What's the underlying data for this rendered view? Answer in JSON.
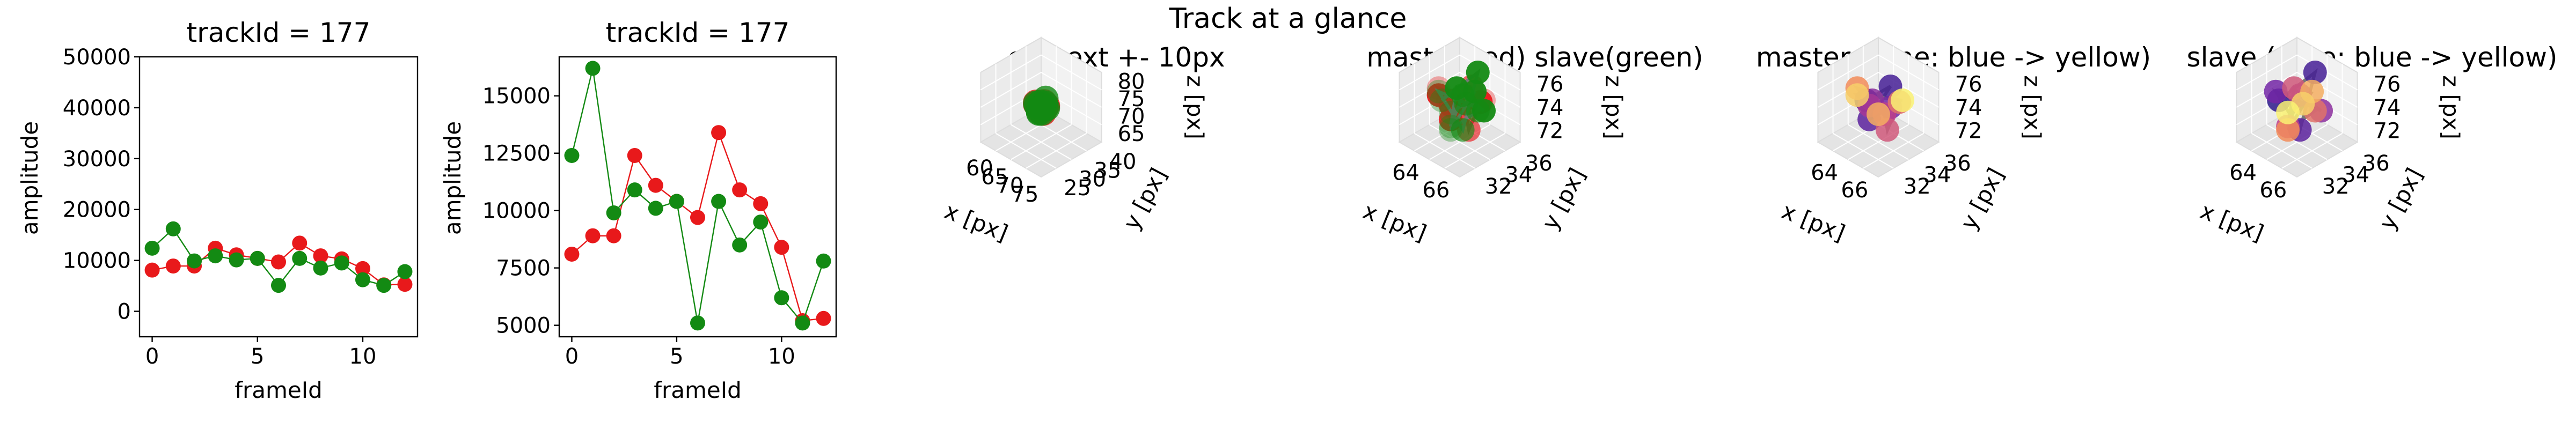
{
  "figure": {
    "suptitle": "Track at a glance"
  },
  "chart_data": [
    {
      "type": "line",
      "title": "trackId = 177",
      "xlabel": "frameId",
      "ylabel": "amplitude",
      "xlim": [
        -0.6,
        12.6
      ],
      "ylim": [
        -5000,
        50000
      ],
      "xticks": [
        0,
        5,
        10
      ],
      "yticks": [
        0,
        10000,
        20000,
        30000,
        40000,
        50000
      ],
      "x": [
        0,
        1,
        2,
        3,
        4,
        5,
        6,
        7,
        8,
        9,
        10,
        11,
        12
      ],
      "series": [
        {
          "color": "#e8191b",
          "values": [
            8100,
            8900,
            8900,
            12400,
            11100,
            10400,
            9700,
            13400,
            10900,
            10300,
            8400,
            5200,
            5300
          ]
        },
        {
          "color": "#138a13",
          "values": [
            12400,
            16200,
            9900,
            10900,
            10100,
            10400,
            5100,
            10400,
            8500,
            9500,
            6200,
            5100,
            7800
          ]
        }
      ]
    },
    {
      "type": "line",
      "title": "trackId = 177",
      "xlabel": "frameId",
      "ylabel": "amplitude",
      "xlim": [
        -0.6,
        12.6
      ],
      "ylim": [
        4500,
        16700
      ],
      "xticks": [
        0,
        5,
        10
      ],
      "yticks": [
        5000,
        7500,
        10000,
        12500,
        15000
      ],
      "x": [
        0,
        1,
        2,
        3,
        4,
        5,
        6,
        7,
        8,
        9,
        10,
        11,
        12
      ],
      "series": [
        {
          "color": "#e8191b",
          "values": [
            8100,
            8900,
            8900,
            12400,
            11100,
            10400,
            9700,
            13400,
            10900,
            10300,
            8400,
            5200,
            5300
          ]
        },
        {
          "color": "#138a13",
          "values": [
            12400,
            16200,
            9900,
            10900,
            10100,
            10400,
            5100,
            10400,
            8500,
            9500,
            6200,
            5100,
            7800
          ]
        }
      ]
    },
    {
      "type": "scatter",
      "title": "context +- 10px",
      "xlabel": "x [px]",
      "ylabel": "y [px]",
      "zlabel": "z [px]",
      "xticks": [
        "60",
        "65",
        "70",
        "75"
      ],
      "yticks": [
        "25",
        "30",
        "35",
        "40"
      ],
      "zticks": [
        "65",
        "70",
        "75",
        "80"
      ]
    },
    {
      "type": "scatter",
      "title": "master(red) slave(green)",
      "xlabel": "x [px]",
      "ylabel": "y [px]",
      "zlabel": "z [px]",
      "xticks": [
        "64",
        "66"
      ],
      "yticks": [
        "32",
        "34",
        "36"
      ],
      "zticks": [
        "72",
        "74",
        "76"
      ]
    },
    {
      "type": "scatter",
      "title": "master (time: blue -> yellow)",
      "xlabel": "x [px]",
      "ylabel": "y [px]",
      "zlabel": "z [px]",
      "xticks": [
        "64",
        "66"
      ],
      "yticks": [
        "32",
        "34",
        "36"
      ],
      "zticks": [
        "72",
        "74",
        "76"
      ]
    },
    {
      "type": "scatter",
      "title": "slave (time: blue -> yellow)",
      "xlabel": "x [px]",
      "ylabel": "y [px]",
      "zlabel": "z [px]",
      "xticks": [
        "64",
        "66"
      ],
      "yticks": [
        "32",
        "34",
        "36"
      ],
      "zticks": [
        "72",
        "74",
        "76"
      ]
    }
  ]
}
